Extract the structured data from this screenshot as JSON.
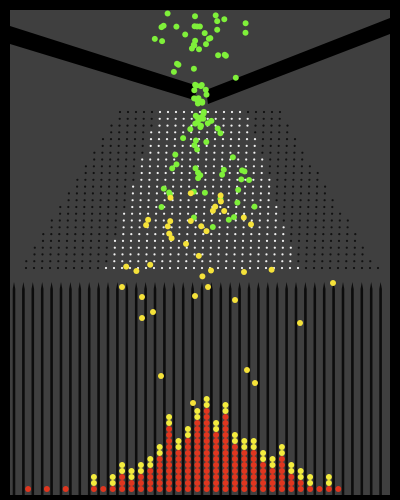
{
  "simulation": {
    "name": "Galton board",
    "peg_rows": 24,
    "bin_count": 39,
    "ball_colors": {
      "falling": "#7ff03a",
      "bouncing": "#f5e23a",
      "settled": "#e0361f",
      "settled_top": "#f3ec3e"
    },
    "palette": {
      "frame": "#000000",
      "background": "#3f3f3f",
      "funnel": "#000000",
      "peg_light": "#f2f2f2",
      "peg_dark": "#111111",
      "divider": "#0c0c0c"
    },
    "histogram_counts": [
      0,
      1,
      0,
      1,
      0,
      1,
      0,
      0,
      3,
      1,
      3,
      5,
      4,
      5,
      6,
      8,
      13,
      9,
      11,
      14,
      16,
      12,
      15,
      10,
      9,
      9,
      7,
      6,
      8,
      5,
      4,
      3,
      1,
      3,
      1,
      0,
      0,
      0,
      0
    ]
  }
}
